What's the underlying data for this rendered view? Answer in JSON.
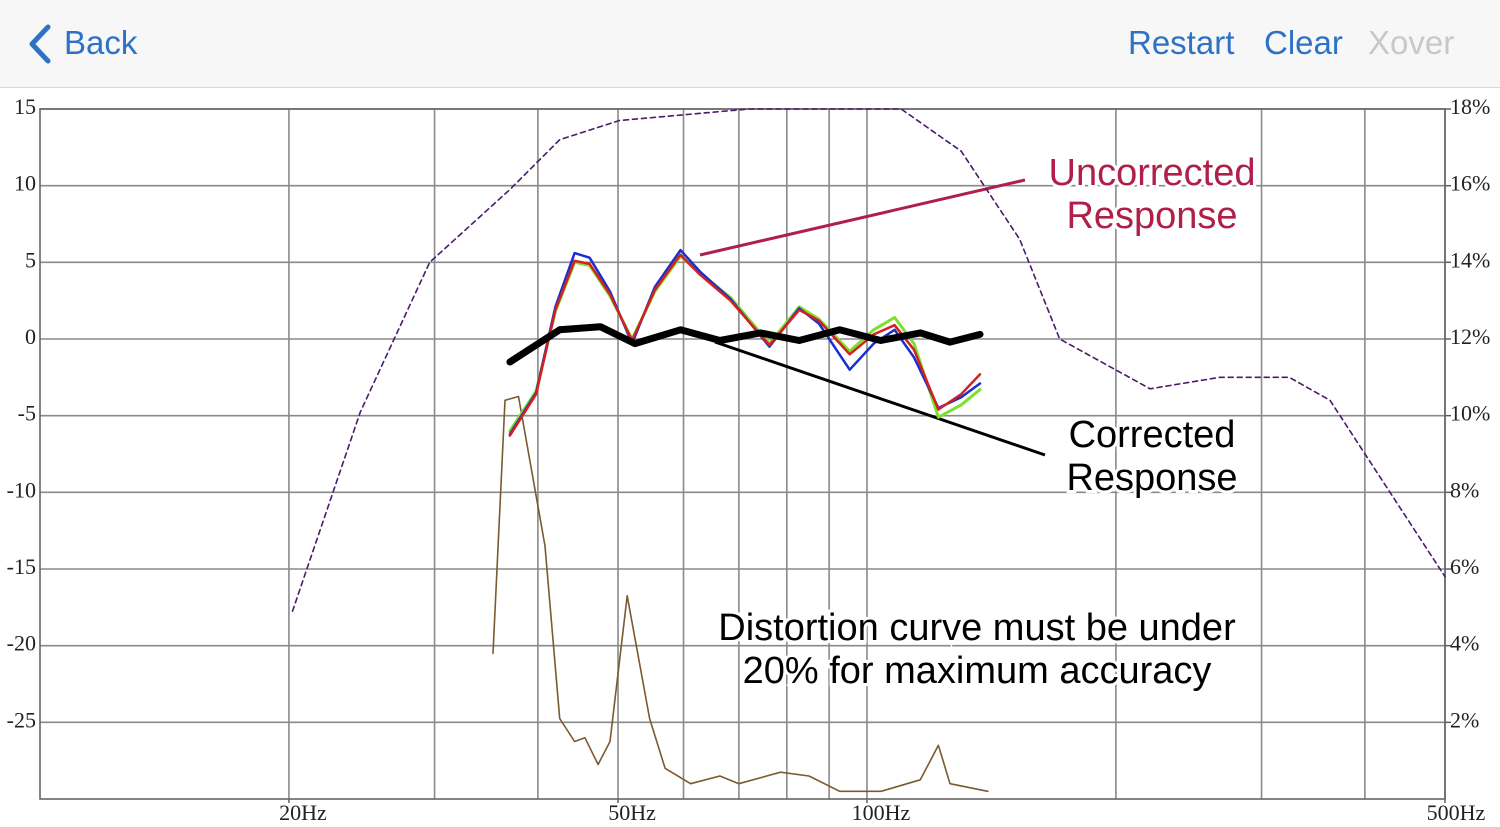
{
  "toolbar": {
    "back": "Back",
    "actions": [
      "Restart",
      "Clear",
      "Xover"
    ]
  },
  "chart_data": {
    "type": "line",
    "log_x": true,
    "xlim": [
      10,
      500
    ],
    "ylim": [
      -30,
      15
    ],
    "y2lim": [
      0,
      18
    ],
    "xticks": [
      {
        "value": 20,
        "label": "20Hz"
      },
      {
        "value": 50,
        "label": "50Hz"
      },
      {
        "value": 100,
        "label": "100Hz"
      },
      {
        "value": 500,
        "label": "500Hz"
      }
    ],
    "xgrid": [
      20,
      30,
      40,
      50,
      60,
      70,
      80,
      90,
      100,
      200,
      300,
      400,
      500
    ],
    "yticks": [
      15,
      10,
      5,
      0,
      -5,
      -10,
      -15,
      -20,
      -25
    ],
    "y2ticks": [
      {
        "value": 18,
        "label": "18%"
      },
      {
        "value": 16,
        "label": "16%"
      },
      {
        "value": 14,
        "label": "14%"
      },
      {
        "value": 12,
        "label": "12%"
      },
      {
        "value": 10,
        "label": "10%"
      },
      {
        "value": 8,
        "label": "8%"
      },
      {
        "value": 6,
        "label": "6%"
      },
      {
        "value": 4,
        "label": "4%"
      },
      {
        "value": 2,
        "label": "2%"
      }
    ],
    "grid": true,
    "series": [
      {
        "color": "#4b1a6b",
        "axis": "y2",
        "dashed": true,
        "line_width": 1.6,
        "x": [
          20.2,
          24.4,
          29.6,
          37.0,
          42.5,
          50.2,
          72,
          110,
          130,
          153,
          171,
          220,
          267,
          324,
          363,
          500
        ],
        "values": [
          4.9,
          10.1,
          14.0,
          15.9,
          17.2,
          17.7,
          18.0,
          18.0,
          16.9,
          14.6,
          12.0,
          10.7,
          11.0,
          11.0,
          10.4,
          5.8
        ]
      },
      {
        "color": "#7a5a30",
        "axis": "y2",
        "line_width": 1.6,
        "x": [
          35.3,
          36.5,
          37.9,
          40.8,
          42.5,
          44.3,
          45.6,
          47.3,
          48.9,
          51.3,
          54.6,
          57.0,
          61.2,
          66.4,
          70,
          78.6,
          85.1,
          92.7,
          104,
          116,
          122,
          126,
          140
        ],
        "values": [
          3.8,
          10.4,
          10.5,
          6.6,
          2.1,
          1.5,
          1.6,
          0.9,
          1.5,
          5.3,
          2.1,
          0.8,
          0.4,
          0.6,
          0.4,
          0.7,
          0.6,
          0.2,
          0.2,
          0.5,
          1.4,
          0.4,
          0.2
        ]
      },
      {
        "color": "#7de02a",
        "line_width": 3,
        "x": [
          37.0,
          39.8,
          42.0,
          44.3,
          46.2,
          48.9,
          52.0,
          55.4,
          59.5,
          62.8,
          68.4,
          76.2,
          82.8,
          87.5,
          95.3,
          101.9,
          108,
          114,
          122,
          130,
          137
        ],
        "values": [
          -6.0,
          -3.4,
          1.8,
          5.0,
          4.8,
          2.8,
          0.0,
          3.1,
          5.4,
          4.3,
          2.7,
          -0.3,
          2.1,
          1.3,
          -0.8,
          0.6,
          1.4,
          -0.3,
          -5.1,
          -4.3,
          -3.3
        ]
      },
      {
        "color": "#1a2fd0",
        "line_width": 2.5,
        "x": [
          37.0,
          39.8,
          42.0,
          44.3,
          46.2,
          48.9,
          52.0,
          55.4,
          59.5,
          62.8,
          68.4,
          76.2,
          82.8,
          87.5,
          95.3,
          101.9,
          108,
          114,
          122,
          130,
          137
        ],
        "values": [
          -6.2,
          -3.5,
          2.1,
          5.6,
          5.3,
          3.1,
          -0.3,
          3.4,
          5.8,
          4.4,
          2.6,
          -0.5,
          2.0,
          1.0,
          -2.0,
          -0.3,
          0.6,
          -1.2,
          -4.5,
          -3.8,
          -2.9
        ]
      },
      {
        "color": "#d42020",
        "line_width": 2.5,
        "x": [
          37.0,
          39.8,
          42.0,
          44.3,
          46.2,
          48.9,
          52.0,
          55.4,
          59.5,
          62.8,
          68.4,
          76.2,
          82.8,
          87.5,
          95.3,
          101.9,
          108,
          114,
          122,
          130,
          137
        ],
        "values": [
          -6.3,
          -3.6,
          1.9,
          5.1,
          4.9,
          2.9,
          -0.1,
          3.2,
          5.5,
          4.2,
          2.5,
          -0.4,
          1.9,
          1.2,
          -1.0,
          0.3,
          0.9,
          -0.7,
          -4.6,
          -3.6,
          -2.3
        ]
      },
      {
        "color": "#000000",
        "line_width": 7,
        "x": [
          37.0,
          42.5,
          47.6,
          52.4,
          59.5,
          66.4,
          74.3,
          82.8,
          92.7,
          103.9,
          116,
          126,
          137
        ],
        "values": [
          -1.5,
          0.6,
          0.8,
          -0.3,
          0.6,
          -0.1,
          0.4,
          -0.1,
          0.6,
          -0.1,
          0.4,
          -0.2,
          0.3
        ]
      }
    ],
    "annotations": [
      {
        "lines": [
          "Uncorrected",
          "Response"
        ],
        "color": "#b01f4a"
      },
      {
        "lines": [
          "Corrected",
          "Response"
        ],
        "color": "#000000"
      },
      {
        "lines": [
          "Distortion curve must be under",
          "20% for maximum accuracy"
        ],
        "color": "#000000"
      }
    ]
  }
}
